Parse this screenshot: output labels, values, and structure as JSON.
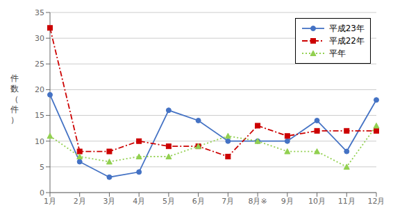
{
  "chart_data": {
    "type": "line",
    "categories": [
      "1月",
      "2月",
      "3月",
      "4月",
      "5月",
      "6月",
      "7月",
      "8月※",
      "9月",
      "10月",
      "11月",
      "12月"
    ],
    "series": [
      {
        "name": "平成23年",
        "color": "#4472C4",
        "values": [
          19,
          6,
          3,
          4,
          16,
          14,
          10,
          10,
          10,
          14,
          8,
          18
        ],
        "line_style": "solid",
        "marker": "circle"
      },
      {
        "name": "平成22年",
        "color": "#CC0000",
        "values": [
          32,
          8,
          8,
          10,
          9,
          9,
          7,
          13,
          11,
          12,
          12,
          12
        ],
        "line_style": "dashdot",
        "marker": "square"
      },
      {
        "name": "平年",
        "color": "#92D050",
        "values": [
          11,
          7,
          6,
          7,
          7,
          9,
          11,
          10,
          8,
          8,
          5,
          13
        ],
        "line_style": "dotted",
        "marker": "triangle"
      }
    ],
    "ylabel": "件数（件）",
    "ylim": [
      0,
      35
    ],
    "yticks": [
      0,
      5,
      10,
      15,
      20,
      25,
      30,
      35
    ],
    "grid": true,
    "legend": "upper right"
  }
}
